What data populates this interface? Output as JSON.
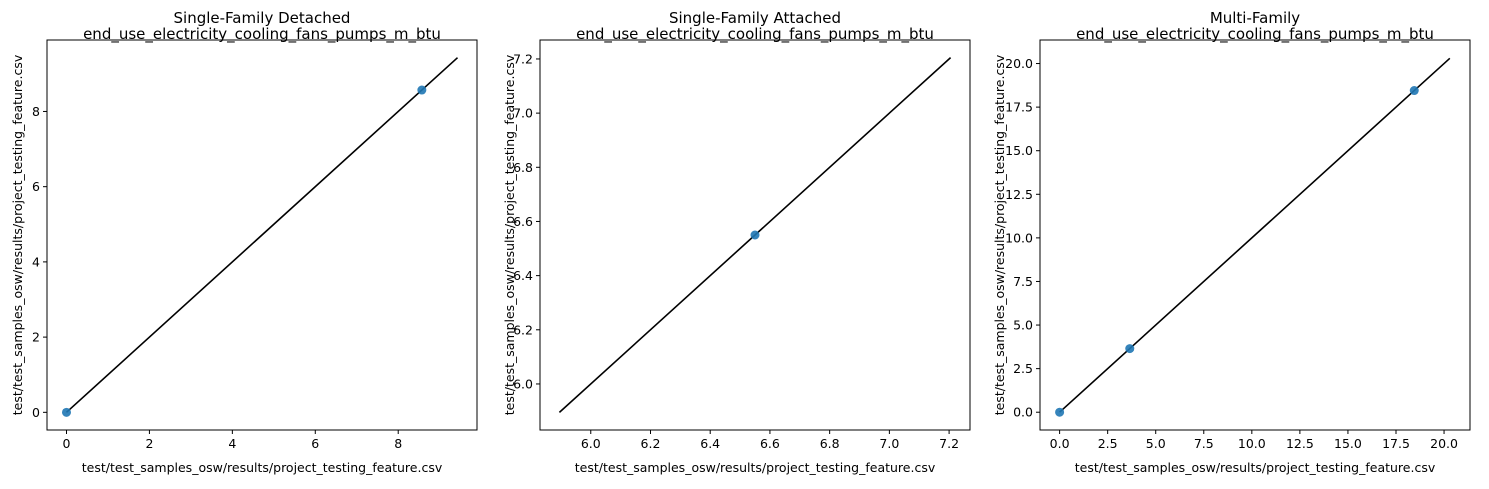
{
  "chart_data": [
    {
      "type": "scatter",
      "title": "Single-Family Detached",
      "subtitle": "end_use_electricity_cooling_fans_pumps_m_btu",
      "xlabel": "test/test_samples_osw/results/project_testing_feature.csv",
      "ylabel": "test/test_samples_osw/results/project_testing_feature.csv",
      "xlim": [
        -0.47,
        9.9
      ],
      "ylim": [
        -0.47,
        9.9
      ],
      "xticks": [
        0,
        2,
        4,
        6,
        8
      ],
      "yticks": [
        0,
        2,
        4,
        6,
        8
      ],
      "tick_format": 0,
      "points": [
        {
          "x": 0.0,
          "y": 0.0
        },
        {
          "x": 8.57,
          "y": 8.57
        }
      ],
      "line": {
        "x": [
          0.0,
          9.43
        ],
        "y": [
          0.0,
          9.43
        ]
      },
      "marker_color": "#1f77b4",
      "line_color": "#000000"
    },
    {
      "type": "scatter",
      "title": "Single-Family Attached",
      "subtitle": "end_use_electricity_cooling_fans_pumps_m_btu",
      "xlabel": "test/test_samples_osw/results/project_testing_feature.csv",
      "ylabel": "test/test_samples_osw/results/project_testing_feature.csv",
      "xlim": [
        5.83,
        7.27
      ],
      "ylim": [
        5.83,
        7.27
      ],
      "xticks": [
        6.0,
        6.2,
        6.4,
        6.6,
        6.8,
        7.0,
        7.2
      ],
      "yticks": [
        6.0,
        6.2,
        6.4,
        6.6,
        6.8,
        7.0,
        7.2
      ],
      "tick_format": 1,
      "points": [
        {
          "x": 6.55,
          "y": 6.55
        }
      ],
      "line": {
        "x": [
          5.895,
          7.205
        ],
        "y": [
          5.895,
          7.205
        ]
      },
      "marker_color": "#1f77b4",
      "line_color": "#000000"
    },
    {
      "type": "scatter",
      "title": "Multi-Family",
      "subtitle": "end_use_electricity_cooling_fans_pumps_m_btu",
      "xlabel": "test/test_samples_osw/results/project_testing_feature.csv",
      "ylabel": "test/test_samples_osw/results/project_testing_feature.csv",
      "xlim": [
        -1.02,
        21.35
      ],
      "ylim": [
        -1.02,
        21.35
      ],
      "xticks": [
        0.0,
        2.5,
        5.0,
        7.5,
        10.0,
        12.5,
        15.0,
        17.5,
        20.0
      ],
      "yticks": [
        0.0,
        2.5,
        5.0,
        7.5,
        10.0,
        12.5,
        15.0,
        17.5,
        20.0
      ],
      "tick_format": 1,
      "points": [
        {
          "x": 0.0,
          "y": 0.0
        },
        {
          "x": 3.65,
          "y": 3.65
        },
        {
          "x": 18.45,
          "y": 18.45
        }
      ],
      "line": {
        "x": [
          0.0,
          20.3
        ],
        "y": [
          0.0,
          20.3
        ]
      },
      "marker_color": "#1f77b4",
      "line_color": "#000000"
    }
  ]
}
